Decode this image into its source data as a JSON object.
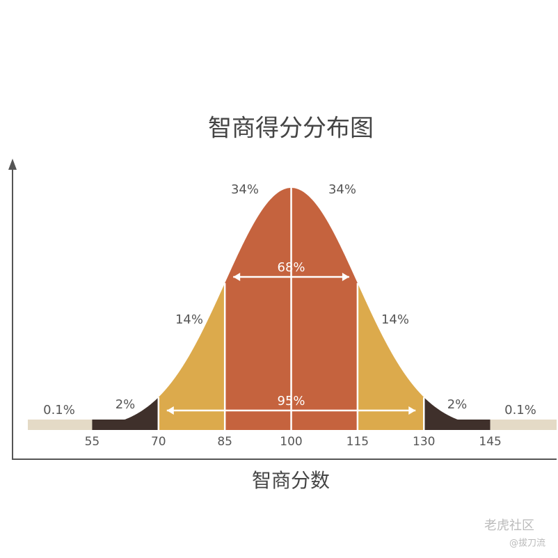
{
  "chart_data": {
    "type": "bell",
    "title": "智商得分分布图",
    "x_label": "智商分数",
    "xlim": [
      37,
      160
    ],
    "xticks": [
      55,
      70,
      85,
      100,
      115,
      130,
      145
    ],
    "values": [
      0.1,
      2,
      14,
      34,
      34,
      14,
      2,
      0.1
    ],
    "value_labels": [
      "0.1%",
      "2%",
      "14%",
      "34%",
      "34%",
      "14%",
      "2%",
      "0.1%"
    ],
    "colors": [
      "#e4dac6",
      "#3f302b",
      "#dcaa4c",
      "#c5633e",
      "#c5633e",
      "#dcaa4c",
      "#3f302b",
      "#e4dac6"
    ],
    "spans": [
      {
        "value": 68,
        "label": "68%"
      },
      {
        "value": 95,
        "label": "95%"
      }
    ],
    "watermark": [
      "老虎社区",
      "@拔刀流"
    ]
  }
}
